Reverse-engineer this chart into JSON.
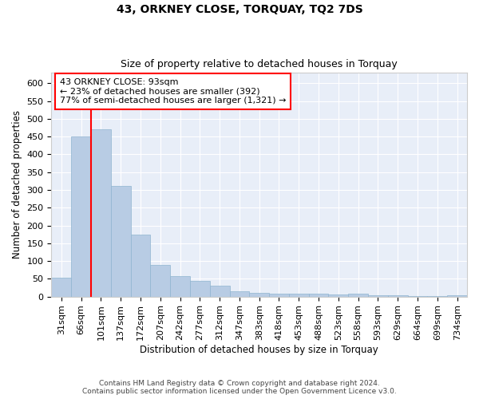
{
  "title": "43, ORKNEY CLOSE, TORQUAY, TQ2 7DS",
  "subtitle": "Size of property relative to detached houses in Torquay",
  "xlabel": "Distribution of detached houses by size in Torquay",
  "ylabel": "Number of detached properties",
  "categories": [
    "31sqm",
    "66sqm",
    "101sqm",
    "137sqm",
    "172sqm",
    "207sqm",
    "242sqm",
    "277sqm",
    "312sqm",
    "347sqm",
    "383sqm",
    "418sqm",
    "453sqm",
    "488sqm",
    "523sqm",
    "558sqm",
    "593sqm",
    "629sqm",
    "664sqm",
    "699sqm",
    "734sqm"
  ],
  "values": [
    52,
    450,
    470,
    310,
    175,
    88,
    58,
    44,
    30,
    14,
    10,
    7,
    9,
    7,
    6,
    7,
    3,
    4,
    2,
    1,
    4
  ],
  "bar_color": "#b8cce4",
  "bar_edge_color": "#8fb4d0",
  "ylim": [
    0,
    630
  ],
  "yticks": [
    0,
    50,
    100,
    150,
    200,
    250,
    300,
    350,
    400,
    450,
    500,
    550,
    600
  ],
  "annotation_line1": "43 ORKNEY CLOSE: 93sqm",
  "annotation_line2": "← 23% of detached houses are smaller (392)",
  "annotation_line3": "77% of semi-detached houses are larger (1,321) →",
  "box_color": "red",
  "red_line_x": 1.5,
  "background_color": "#e8eef8",
  "footer_line1": "Contains HM Land Registry data © Crown copyright and database right 2024.",
  "footer_line2": "Contains public sector information licensed under the Open Government Licence v3.0.",
  "title_fontsize": 10,
  "subtitle_fontsize": 9,
  "xlabel_fontsize": 8.5,
  "ylabel_fontsize": 8.5,
  "tick_fontsize": 8,
  "annotation_fontsize": 8
}
